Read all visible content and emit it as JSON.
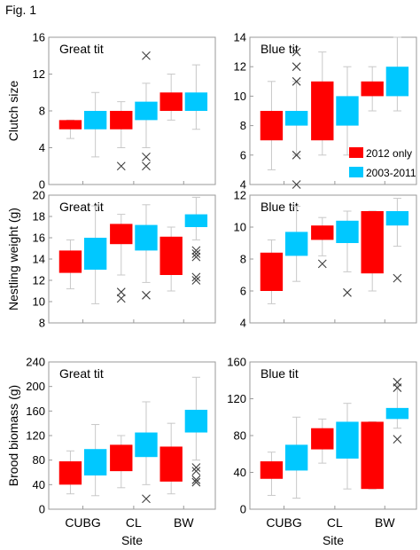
{
  "figure_label": "Fig. 1",
  "colors": {
    "s2012": "#ff0000",
    "s2003": "#00c8ff",
    "whisker": "#c8c8c8",
    "outlier": "#404040",
    "frame": "#9a9a9a"
  },
  "legend": {
    "s2012_label": "2012 only",
    "s2003_label": "2003-2011"
  },
  "chart_data": [
    {
      "type": "box",
      "title": "Great tit",
      "ylabel": "Clutch size",
      "xlabel": "",
      "ylim": [
        0,
        16
      ],
      "yticks": [
        0,
        4,
        8,
        12,
        16
      ],
      "categories": [
        "CUBG",
        "CL",
        "BW"
      ],
      "series": [
        {
          "name": "2012 only",
          "boxes": [
            {
              "low": 5,
              "q1": 6,
              "q3": 7,
              "high": 7,
              "outliers": []
            },
            {
              "low": 4,
              "q1": 6,
              "q3": 8,
              "high": 9,
              "outliers": [
                2
              ]
            },
            {
              "low": 7,
              "q1": 8,
              "q3": 10,
              "high": 12,
              "outliers": []
            }
          ]
        },
        {
          "name": "2003-2011",
          "boxes": [
            {
              "low": 3,
              "q1": 6,
              "q3": 8,
              "high": 10,
              "outliers": []
            },
            {
              "low": 4,
              "q1": 7,
              "q3": 9,
              "high": 11,
              "outliers": [
                14,
                3,
                2
              ]
            },
            {
              "low": 6,
              "q1": 8,
              "q3": 10,
              "high": 13,
              "outliers": []
            }
          ]
        }
      ]
    },
    {
      "type": "box",
      "title": "Blue tit",
      "ylabel": "",
      "xlabel": "",
      "ylim": [
        4,
        14
      ],
      "yticks": [
        4,
        6,
        8,
        10,
        12,
        14
      ],
      "categories": [
        "CUBG",
        "CL",
        "BW"
      ],
      "series": [
        {
          "name": "2012 only",
          "boxes": [
            {
              "low": 5,
              "q1": 7,
              "q3": 9,
              "high": 11,
              "outliers": []
            },
            {
              "low": 6,
              "q1": 7,
              "q3": 11,
              "high": 13,
              "outliers": []
            },
            {
              "low": 9,
              "q1": 10,
              "q3": 11,
              "high": 12,
              "outliers": []
            }
          ]
        },
        {
          "name": "2003-2011",
          "boxes": [
            {
              "low": 6,
              "q1": 8,
              "q3": 9,
              "high": 11,
              "outliers": [
                13,
                12,
                11,
                6,
                4
              ]
            },
            {
              "low": 6,
              "q1": 8,
              "q3": 10,
              "high": 12,
              "outliers": []
            },
            {
              "low": 9,
              "q1": 10,
              "q3": 12,
              "high": 14,
              "outliers": []
            }
          ]
        }
      ],
      "legend": true
    },
    {
      "type": "box",
      "title": "Great tit",
      "ylabel": "Nestling weight (g)",
      "xlabel": "",
      "ylim": [
        8,
        20
      ],
      "yticks": [
        8,
        10,
        12,
        14,
        16,
        18,
        20
      ],
      "categories": [
        "CUBG",
        "CL",
        "BW"
      ],
      "series": [
        {
          "name": "2012 only",
          "boxes": [
            {
              "low": 11.2,
              "q1": 12.7,
              "q3": 14.8,
              "high": 15.8,
              "outliers": []
            },
            {
              "low": 12.5,
              "q1": 15.4,
              "q3": 17.3,
              "high": 18.2,
              "outliers": [
                10.9,
                10.3
              ]
            },
            {
              "low": 11.0,
              "q1": 12.5,
              "q3": 16.1,
              "high": 17.0,
              "outliers": []
            }
          ]
        },
        {
          "name": "2003-2011",
          "boxes": [
            {
              "low": 9.8,
              "q1": 13.0,
              "q3": 16.0,
              "high": 19.0,
              "outliers": []
            },
            {
              "low": 11.8,
              "q1": 14.8,
              "q3": 17.2,
              "high": 19.1,
              "outliers": [
                10.6
              ]
            },
            {
              "low": 15.8,
              "q1": 17.0,
              "q3": 18.2,
              "high": 19.8,
              "outliers": [
                14.8,
                14.5,
                14.2,
                12.3,
                12.0
              ]
            }
          ]
        }
      ]
    },
    {
      "type": "box",
      "title": "Blue tit",
      "ylabel": "",
      "xlabel": "",
      "ylim": [
        4,
        12
      ],
      "yticks": [
        4,
        6,
        8,
        10,
        12
      ],
      "categories": [
        "CUBG",
        "CL",
        "BW"
      ],
      "series": [
        {
          "name": "2012 only",
          "boxes": [
            {
              "low": 5.2,
              "q1": 6.0,
              "q3": 8.4,
              "high": 9.2,
              "outliers": []
            },
            {
              "low": 8.2,
              "q1": 9.2,
              "q3": 10.1,
              "high": 10.6,
              "outliers": [
                7.7
              ]
            },
            {
              "low": 6.0,
              "q1": 7.1,
              "q3": 11.0,
              "high": 11.0,
              "outliers": []
            }
          ]
        },
        {
          "name": "2003-2011",
          "boxes": [
            {
              "low": 6.6,
              "q1": 8.2,
              "q3": 9.7,
              "high": 11.3,
              "outliers": []
            },
            {
              "low": 7.2,
              "q1": 9.0,
              "q3": 10.4,
              "high": 11.0,
              "outliers": [
                5.9
              ]
            },
            {
              "low": 8.8,
              "q1": 10.1,
              "q3": 11.0,
              "high": 11.8,
              "outliers": [
                6.8
              ]
            }
          ]
        }
      ]
    },
    {
      "type": "box",
      "title": "Great tit",
      "ylabel": "Brood biomass (g)",
      "xlabel": "Site",
      "ylim": [
        0,
        240
      ],
      "yticks": [
        0,
        40,
        80,
        120,
        160,
        200,
        240
      ],
      "categories": [
        "CUBG",
        "CL",
        "BW"
      ],
      "series": [
        {
          "name": "2012 only",
          "boxes": [
            {
              "low": 25,
              "q1": 40,
              "q3": 78,
              "high": 95,
              "outliers": []
            },
            {
              "low": 35,
              "q1": 62,
              "q3": 105,
              "high": 120,
              "outliers": []
            },
            {
              "low": 25,
              "q1": 45,
              "q3": 102,
              "high": 140,
              "outliers": []
            }
          ]
        },
        {
          "name": "2003-2011",
          "boxes": [
            {
              "low": 22,
              "q1": 55,
              "q3": 98,
              "high": 138,
              "outliers": []
            },
            {
              "low": 40,
              "q1": 85,
              "q3": 125,
              "high": 175,
              "outliers": [
                17
              ]
            },
            {
              "low": 80,
              "q1": 125,
              "q3": 162,
              "high": 215,
              "outliers": [
                68,
                62,
                48,
                44
              ]
            }
          ]
        }
      ]
    },
    {
      "type": "box",
      "title": "Blue tit",
      "ylabel": "",
      "xlabel": "Site",
      "ylim": [
        0,
        160
      ],
      "yticks": [
        0,
        40,
        80,
        120,
        160
      ],
      "categories": [
        "CUBG",
        "CL",
        "BW"
      ],
      "series": [
        {
          "name": "2012 only",
          "boxes": [
            {
              "low": 15,
              "q1": 33,
              "q3": 52,
              "high": 62,
              "outliers": []
            },
            {
              "low": 50,
              "q1": 65,
              "q3": 88,
              "high": 98,
              "outliers": []
            },
            {
              "low": 22,
              "q1": 22,
              "q3": 95,
              "high": 95,
              "outliers": []
            }
          ]
        },
        {
          "name": "2003-2011",
          "boxes": [
            {
              "low": 12,
              "q1": 42,
              "q3": 70,
              "high": 100,
              "outliers": []
            },
            {
              "low": 22,
              "q1": 55,
              "q3": 95,
              "high": 115,
              "outliers": []
            },
            {
              "low": 88,
              "q1": 98,
              "q3": 110,
              "high": 135,
              "outliers": [
                138,
                132,
                76
              ]
            }
          ]
        }
      ]
    }
  ]
}
